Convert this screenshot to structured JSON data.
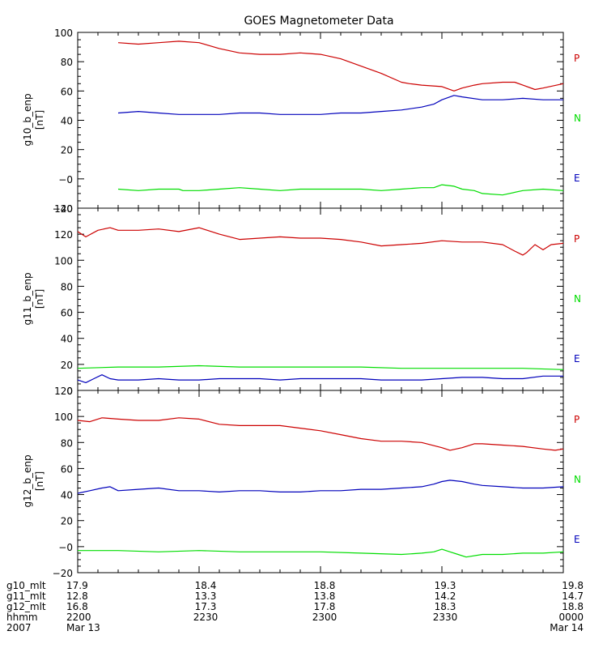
{
  "chart_data": {
    "type": "line",
    "title": "GOES Magnetometer Data",
    "x_range": [
      0,
      120
    ],
    "x_units": "minutes since 2200 UT, 2007 Mar 13",
    "x_ticks": [
      0,
      30,
      60,
      90,
      120
    ],
    "legend_labels": [
      "P",
      "N",
      "E"
    ],
    "colors": {
      "P": "#cc0000",
      "N": "#00dd00",
      "E": "#0000bb"
    },
    "panels": [
      {
        "ylabel": "g10_b_enp",
        "yunits": "[nT]",
        "ylim": [
          -20,
          100
        ],
        "yticks": [
          -20,
          0,
          20,
          40,
          60,
          80,
          100
        ],
        "tick_labels": [
          "−20",
          "−0",
          "20",
          "40",
          "60",
          "80",
          "100"
        ],
        "series": [
          {
            "name": "P",
            "x": [
              10,
              15,
              20,
              25,
              30,
              35,
              40,
              45,
              50,
              55,
              60,
              65,
              70,
              75,
              80,
              82,
              85,
              90,
              93,
              95,
              98,
              100,
              105,
              108,
              110,
              113,
              115,
              120
            ],
            "values": [
              93,
              92,
              93,
              94,
              93,
              89,
              86,
              85,
              85,
              86,
              85,
              82,
              77,
              72,
              66,
              65,
              64,
              63,
              60,
              62,
              64,
              65,
              66,
              66,
              64,
              61,
              62,
              65
            ]
          },
          {
            "name": "N",
            "x": [
              10,
              15,
              20,
              25,
              26,
              30,
              35,
              40,
              45,
              50,
              55,
              60,
              65,
              70,
              75,
              80,
              85,
              88,
              90,
              93,
              95,
              98,
              100,
              105,
              110,
              115,
              120
            ],
            "values": [
              -7,
              -8,
              -7,
              -7,
              -8,
              -8,
              -7,
              -6,
              -7,
              -8,
              -7,
              -7,
              -7,
              -7,
              -8,
              -7,
              -6,
              -6,
              -4,
              -5,
              -7,
              -8,
              -10,
              -11,
              -8,
              -7,
              -8
            ]
          },
          {
            "name": "E",
            "x": [
              10,
              15,
              20,
              25,
              30,
              35,
              40,
              45,
              50,
              55,
              60,
              65,
              70,
              75,
              80,
              85,
              88,
              90,
              93,
              95,
              100,
              105,
              110,
              115,
              120
            ],
            "values": [
              45,
              46,
              45,
              44,
              44,
              44,
              45,
              45,
              44,
              44,
              44,
              45,
              45,
              46,
              47,
              49,
              51,
              54,
              57,
              56,
              54,
              54,
              55,
              54,
              54
            ]
          }
        ]
      },
      {
        "ylabel": "g11_b_enp",
        "yunits": "[nT]",
        "ylim": [
          0,
          140
        ],
        "yticks": [
          0,
          20,
          40,
          60,
          80,
          100,
          120,
          140
        ],
        "tick_labels": [
          "0",
          "20",
          "40",
          "60",
          "80",
          "100",
          "120",
          "140"
        ],
        "series": [
          {
            "name": "P",
            "x": [
              0,
              2,
              5,
              8,
              10,
              15,
              20,
              25,
              30,
              35,
              40,
              45,
              50,
              55,
              60,
              65,
              70,
              75,
              80,
              85,
              90,
              95,
              100,
              105,
              108,
              110,
              111,
              113,
              115,
              117,
              120
            ],
            "values": [
              122,
              118,
              123,
              125,
              123,
              123,
              124,
              122,
              125,
              120,
              116,
              117,
              118,
              117,
              117,
              116,
              114,
              111,
              112,
              113,
              115,
              114,
              114,
              112,
              107,
              104,
              106,
              112,
              108,
              112,
              113
            ]
          },
          {
            "name": "N",
            "x": [
              0,
              10,
              20,
              30,
              40,
              50,
              60,
              70,
              80,
              90,
              100,
              110,
              120
            ],
            "values": [
              17,
              18,
              18,
              19,
              18,
              18,
              18,
              18,
              17,
              17,
              17,
              17,
              16
            ]
          },
          {
            "name": "E",
            "x": [
              0,
              2,
              4,
              6,
              8,
              10,
              15,
              20,
              25,
              30,
              35,
              40,
              45,
              50,
              55,
              60,
              65,
              70,
              75,
              80,
              85,
              90,
              95,
              100,
              105,
              110,
              115,
              120
            ],
            "values": [
              8,
              6,
              9,
              12,
              9,
              8,
              8,
              9,
              8,
              8,
              9,
              9,
              9,
              8,
              9,
              9,
              9,
              9,
              8,
              8,
              8,
              9,
              10,
              10,
              9,
              9,
              11,
              11
            ]
          }
        ]
      },
      {
        "ylabel": "g12_b_enp",
        "yunits": "[nT]",
        "ylim": [
          -20,
          120
        ],
        "yticks": [
          -20,
          0,
          20,
          40,
          60,
          80,
          100,
          120
        ],
        "tick_labels": [
          "−20",
          "−0",
          "20",
          "40",
          "60",
          "80",
          "100",
          "120"
        ],
        "series": [
          {
            "name": "P",
            "x": [
              0,
              3,
              6,
              10,
              15,
              20,
              25,
              30,
              35,
              40,
              45,
              50,
              55,
              60,
              65,
              70,
              75,
              80,
              85,
              90,
              92,
              95,
              98,
              100,
              105,
              110,
              115,
              118,
              120
            ],
            "values": [
              97,
              96,
              99,
              98,
              97,
              97,
              99,
              98,
              94,
              93,
              93,
              93,
              91,
              89,
              86,
              83,
              81,
              81,
              80,
              76,
              74,
              76,
              79,
              79,
              78,
              77,
              75,
              74,
              75
            ]
          },
          {
            "name": "N",
            "x": [
              0,
              10,
              20,
              30,
              40,
              50,
              60,
              70,
              80,
              85,
              88,
              90,
              92,
              94,
              96,
              100,
              105,
              110,
              115,
              120
            ],
            "values": [
              -3,
              -3,
              -4,
              -3,
              -4,
              -4,
              -4,
              -5,
              -6,
              -5,
              -4,
              -2,
              -4,
              -6,
              -8,
              -6,
              -6,
              -5,
              -5,
              -4
            ]
          },
          {
            "name": "E",
            "x": [
              0,
              3,
              6,
              8,
              10,
              15,
              20,
              25,
              30,
              35,
              40,
              45,
              50,
              55,
              60,
              65,
              70,
              75,
              80,
              85,
              88,
              90,
              92,
              95,
              98,
              100,
              105,
              110,
              115,
              120
            ],
            "values": [
              41,
              43,
              45,
              46,
              43,
              44,
              45,
              43,
              43,
              42,
              43,
              43,
              42,
              42,
              43,
              43,
              44,
              44,
              45,
              46,
              48,
              50,
              51,
              50,
              48,
              47,
              46,
              45,
              45,
              46
            ]
          }
        ]
      }
    ]
  },
  "footer": {
    "rows": [
      {
        "label": "g10_mlt",
        "values": [
          "17.9",
          "18.4",
          "18.8",
          "19.3",
          "19.8"
        ]
      },
      {
        "label": "g11_mlt",
        "values": [
          "12.8",
          "13.3",
          "13.8",
          "14.2",
          "14.7"
        ]
      },
      {
        "label": "g12_mlt",
        "values": [
          "16.8",
          "17.3",
          "17.8",
          "18.3",
          "18.8"
        ]
      },
      {
        "label": "hhmm",
        "values": [
          "2200",
          "2230",
          "2300",
          "2330",
          "0000"
        ]
      },
      {
        "label": "2007",
        "values": [
          "Mar 13",
          "",
          "",
          "",
          "Mar 14"
        ]
      }
    ]
  }
}
